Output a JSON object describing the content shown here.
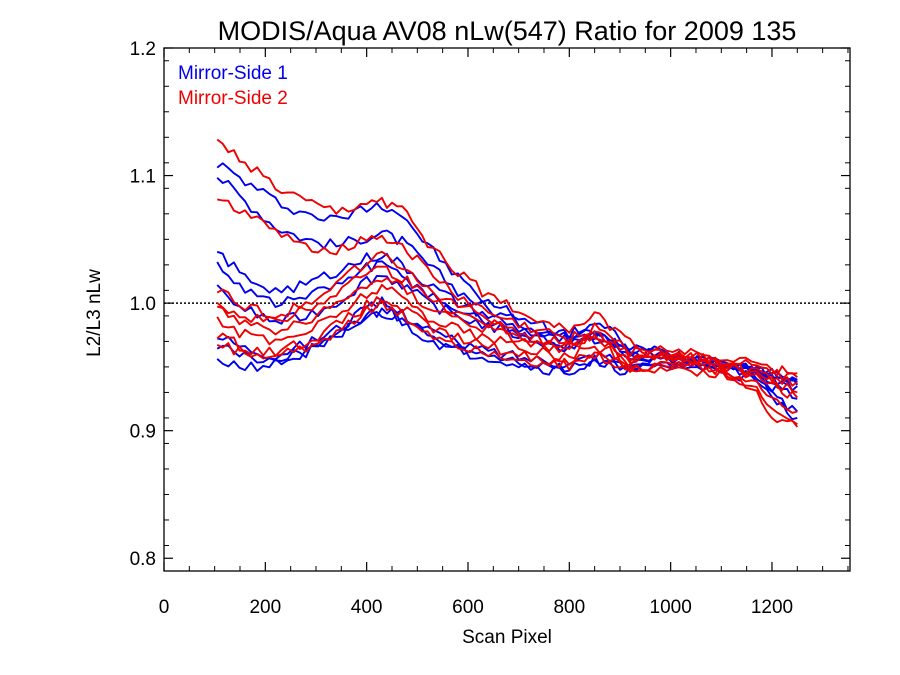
{
  "chart_data": {
    "type": "line",
    "title": "MODIS/Aqua AV08 nLw(547) Ratio for 2009 135",
    "xlabel": "Scan Pixel",
    "ylabel": "L2/L3 nLw",
    "xlim": [
      0,
      1354
    ],
    "ylim": [
      0.79,
      1.2
    ],
    "xticks": [
      0,
      200,
      400,
      600,
      800,
      1000,
      1200
    ],
    "yticks": [
      0.8,
      0.9,
      1.0,
      1.1,
      1.2
    ],
    "xtick_labels": [
      "0",
      "200",
      "400",
      "600",
      "800",
      "1000",
      "1200"
    ],
    "ytick_labels": [
      "0.8",
      "0.9",
      "1.0",
      "1.1",
      "1.2"
    ],
    "reference_line": {
      "y": 1.0,
      "style": "dotted"
    },
    "legend": {
      "placement": "top-left",
      "entries": [
        {
          "label": "Mirror-Side 1",
          "color": "#0000ee"
        },
        {
          "label": "Mirror-Side 2",
          "color": "#ee0000"
        }
      ]
    },
    "x": [
      105,
      160,
      220,
      280,
      340,
      400,
      430,
      470,
      520,
      580,
      640,
      700,
      760,
      800,
      850,
      880,
      920,
      980,
      1040,
      1100,
      1160,
      1200,
      1250
    ],
    "series": [
      {
        "group": 1,
        "color": "#0000ee",
        "values": [
          1.11,
          1.095,
          1.08,
          1.07,
          1.065,
          1.075,
          1.078,
          1.07,
          1.045,
          1.02,
          1.0,
          0.99,
          0.98,
          0.975,
          0.985,
          0.978,
          0.965,
          0.962,
          0.958,
          0.955,
          0.95,
          0.945,
          0.94
        ]
      },
      {
        "group": 1,
        "color": "#0000ee",
        "values": [
          1.1,
          1.08,
          1.06,
          1.05,
          1.045,
          1.052,
          1.055,
          1.048,
          1.03,
          1.01,
          0.995,
          0.985,
          0.978,
          0.972,
          0.98,
          0.975,
          0.962,
          0.96,
          0.957,
          0.953,
          0.948,
          0.942,
          0.936
        ]
      },
      {
        "group": 1,
        "color": "#0000ee",
        "values": [
          1.04,
          1.02,
          1.01,
          1.015,
          1.025,
          1.035,
          1.038,
          1.03,
          1.015,
          1.0,
          0.99,
          0.98,
          0.972,
          0.97,
          0.978,
          0.972,
          0.96,
          0.962,
          0.958,
          0.955,
          0.95,
          0.945,
          0.94
        ]
      },
      {
        "group": 1,
        "color": "#0000ee",
        "values": [
          1.03,
          1.012,
          1.0,
          1.005,
          1.015,
          1.028,
          1.03,
          1.022,
          1.008,
          0.995,
          0.985,
          0.978,
          0.97,
          0.968,
          0.975,
          0.97,
          0.958,
          0.96,
          0.956,
          0.953,
          0.948,
          0.943,
          0.938
        ]
      },
      {
        "group": 1,
        "color": "#0000ee",
        "values": [
          1.01,
          0.995,
          0.985,
          0.99,
          1.0,
          1.018,
          1.022,
          1.015,
          1.0,
          0.99,
          0.982,
          0.975,
          0.968,
          0.965,
          0.972,
          0.968,
          0.955,
          0.958,
          0.955,
          0.952,
          0.946,
          0.94,
          0.935
        ]
      },
      {
        "group": 1,
        "color": "#0000ee",
        "values": [
          0.975,
          0.965,
          0.96,
          0.968,
          0.98,
          0.995,
          1.0,
          0.992,
          0.98,
          0.968,
          0.962,
          0.958,
          0.955,
          0.952,
          0.96,
          0.958,
          0.95,
          0.955,
          0.955,
          0.952,
          0.945,
          0.935,
          0.925
        ]
      },
      {
        "group": 1,
        "color": "#0000ee",
        "values": [
          0.965,
          0.958,
          0.955,
          0.962,
          0.975,
          0.99,
          0.995,
          0.988,
          0.975,
          0.965,
          0.96,
          0.955,
          0.95,
          0.948,
          0.955,
          0.952,
          0.948,
          0.952,
          0.952,
          0.95,
          0.942,
          0.928,
          0.915
        ]
      },
      {
        "group": 1,
        "color": "#0000ee",
        "values": [
          0.955,
          0.95,
          0.952,
          0.96,
          0.972,
          0.988,
          0.992,
          0.985,
          0.972,
          0.962,
          0.958,
          0.952,
          0.948,
          0.946,
          0.952,
          0.95,
          0.946,
          0.95,
          0.95,
          0.948,
          0.94,
          0.925,
          0.91
        ]
      },
      {
        "group": 2,
        "color": "#ee0000",
        "values": [
          1.125,
          1.11,
          1.09,
          1.078,
          1.07,
          1.078,
          1.08,
          1.072,
          1.048,
          1.025,
          1.005,
          0.995,
          0.985,
          0.98,
          0.99,
          0.982,
          0.968,
          0.965,
          0.96,
          0.958,
          0.952,
          0.948,
          0.945
        ]
      },
      {
        "group": 2,
        "color": "#ee0000",
        "values": [
          1.085,
          1.07,
          1.055,
          1.045,
          1.042,
          1.05,
          1.054,
          1.045,
          1.025,
          1.005,
          0.992,
          0.983,
          0.976,
          0.972,
          0.982,
          0.976,
          0.963,
          0.962,
          0.958,
          0.955,
          0.95,
          0.946,
          0.942
        ]
      },
      {
        "group": 2,
        "color": "#ee0000",
        "values": [
          1.01,
          0.998,
          0.99,
          1.0,
          1.015,
          1.032,
          1.036,
          1.028,
          1.012,
          0.998,
          0.988,
          0.978,
          0.97,
          0.968,
          0.976,
          0.97,
          0.958,
          0.96,
          0.957,
          0.954,
          0.948,
          0.942,
          0.938
        ]
      },
      {
        "group": 2,
        "color": "#ee0000",
        "values": [
          1.0,
          0.99,
          0.985,
          0.995,
          1.008,
          1.025,
          1.028,
          1.02,
          1.005,
          0.993,
          0.985,
          0.976,
          0.968,
          0.966,
          0.974,
          0.968,
          0.956,
          0.958,
          0.955,
          0.952,
          0.946,
          0.938,
          0.93
        ]
      },
      {
        "group": 2,
        "color": "#ee0000",
        "values": [
          0.995,
          0.985,
          0.978,
          0.985,
          0.998,
          1.015,
          1.02,
          1.012,
          0.998,
          0.988,
          0.98,
          0.972,
          0.965,
          0.963,
          0.972,
          0.965,
          0.953,
          0.956,
          0.954,
          0.95,
          0.944,
          0.935,
          0.926
        ]
      },
      {
        "group": 2,
        "color": "#ee0000",
        "values": [
          0.985,
          0.975,
          0.97,
          0.978,
          0.99,
          1.008,
          1.012,
          1.005,
          0.99,
          0.98,
          0.972,
          0.966,
          0.96,
          0.958,
          0.966,
          0.962,
          0.95,
          0.953,
          0.952,
          0.948,
          0.94,
          0.925,
          0.915
        ]
      },
      {
        "group": 2,
        "color": "#ee0000",
        "values": [
          0.975,
          0.965,
          0.962,
          0.97,
          0.982,
          0.998,
          1.003,
          0.996,
          0.982,
          0.972,
          0.966,
          0.96,
          0.955,
          0.953,
          0.962,
          0.958,
          0.948,
          0.951,
          0.95,
          0.946,
          0.936,
          0.918,
          0.905
        ]
      },
      {
        "group": 2,
        "color": "#ee0000",
        "values": [
          0.968,
          0.96,
          0.958,
          0.966,
          0.978,
          0.994,
          0.998,
          0.99,
          0.977,
          0.968,
          0.962,
          0.957,
          0.952,
          0.95,
          0.958,
          0.955,
          0.946,
          0.949,
          0.948,
          0.944,
          0.934,
          0.912,
          0.903
        ]
      }
    ]
  }
}
